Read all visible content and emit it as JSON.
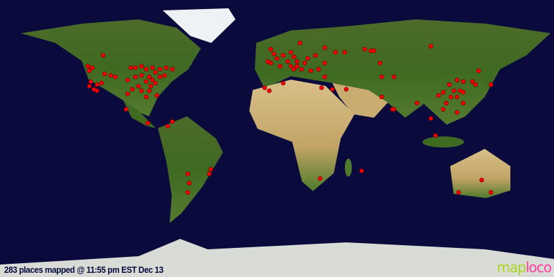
{
  "caption": "283 places mapped @ 11:55 pm EST Dec 13",
  "logo": {
    "part1": "map",
    "part2": "loco"
  },
  "colors": {
    "ocean": "#0a0a3c",
    "marker": "#ff0000",
    "logo_map": "#a8d61c",
    "logo_loco": "#ff3aa0"
  },
  "projection": "equirectangular",
  "markers_lonlat": [
    [
      -113,
      54
    ],
    [
      -123,
      47
    ],
    [
      -120,
      46
    ],
    [
      -122,
      44
    ],
    [
      -112,
      42
    ],
    [
      -108,
      41
    ],
    [
      -105,
      40
    ],
    [
      -95,
      46
    ],
    [
      -92,
      46
    ],
    [
      -88,
      47
    ],
    [
      -85,
      45
    ],
    [
      -81,
      46
    ],
    [
      -76,
      45
    ],
    [
      -72,
      46
    ],
    [
      -68,
      45
    ],
    [
      -79,
      43
    ],
    [
      -83,
      40
    ],
    [
      -88,
      41
    ],
    [
      -92,
      40
    ],
    [
      -97,
      38
    ],
    [
      -85,
      37
    ],
    [
      -81,
      38
    ],
    [
      -76,
      40
    ],
    [
      -73,
      41
    ],
    [
      -82,
      34
    ],
    [
      -79,
      36
    ],
    [
      -90,
      34
    ],
    [
      -94,
      32
    ],
    [
      -97,
      29
    ],
    [
      -121,
      37
    ],
    [
      -122,
      34
    ],
    [
      -117,
      35
    ],
    [
      -114,
      36
    ],
    [
      -119,
      32
    ],
    [
      -117,
      31
    ],
    [
      -83,
      31
    ],
    [
      -88,
      31
    ],
    [
      -85,
      27
    ],
    [
      -98,
      19
    ],
    [
      -84,
      10
    ],
    [
      -68,
      11
    ],
    [
      -71,
      8
    ],
    [
      -78,
      28
    ],
    [
      -58,
      -23
    ],
    [
      -43,
      -20
    ],
    [
      -44,
      -23
    ],
    [
      -57,
      -29
    ],
    [
      -58,
      -35
    ],
    [
      -4,
      58
    ],
    [
      -2,
      55
    ],
    [
      0,
      52
    ],
    [
      4,
      54
    ],
    [
      9,
      56
    ],
    [
      11,
      53
    ],
    [
      13,
      50
    ],
    [
      7,
      50
    ],
    [
      9,
      47
    ],
    [
      13,
      47
    ],
    [
      18,
      49
    ],
    [
      16,
      45
    ],
    [
      11,
      45
    ],
    [
      2,
      47
    ],
    [
      -4,
      49
    ],
    [
      -6,
      50
    ],
    [
      15,
      62
    ],
    [
      20,
      52
    ],
    [
      25,
      54
    ],
    [
      31,
      59
    ],
    [
      38,
      56
    ],
    [
      44,
      56
    ],
    [
      57,
      58
    ],
    [
      61,
      57
    ],
    [
      63,
      57
    ],
    [
      100,
      60
    ],
    [
      31,
      49
    ],
    [
      27,
      45
    ],
    [
      22,
      44
    ],
    [
      31,
      40
    ],
    [
      36,
      32
    ],
    [
      45,
      32
    ],
    [
      -8,
      33
    ],
    [
      -5,
      31
    ],
    [
      4,
      36
    ],
    [
      29,
      33
    ],
    [
      67,
      49
    ],
    [
      68,
      40
    ],
    [
      76,
      40
    ],
    [
      68,
      27
    ],
    [
      75,
      19
    ],
    [
      76,
      19
    ],
    [
      91,
      23
    ],
    [
      100,
      13
    ],
    [
      103,
      2
    ],
    [
      105,
      28
    ],
    [
      108,
      30
    ],
    [
      112,
      35
    ],
    [
      117,
      38
    ],
    [
      121,
      37
    ],
    [
      115,
      31
    ],
    [
      119,
      31
    ],
    [
      121,
      30
    ],
    [
      117,
      27
    ],
    [
      113,
      27
    ],
    [
      110,
      23
    ],
    [
      108,
      19
    ],
    [
      117,
      17
    ],
    [
      121,
      23
    ],
    [
      131,
      44
    ],
    [
      127,
      37
    ],
    [
      129,
      35
    ],
    [
      139,
      35
    ],
    [
      28,
      -26
    ],
    [
      55,
      -21
    ],
    [
      118,
      -35
    ],
    [
      133,
      -27
    ],
    [
      139,
      -35
    ]
  ]
}
